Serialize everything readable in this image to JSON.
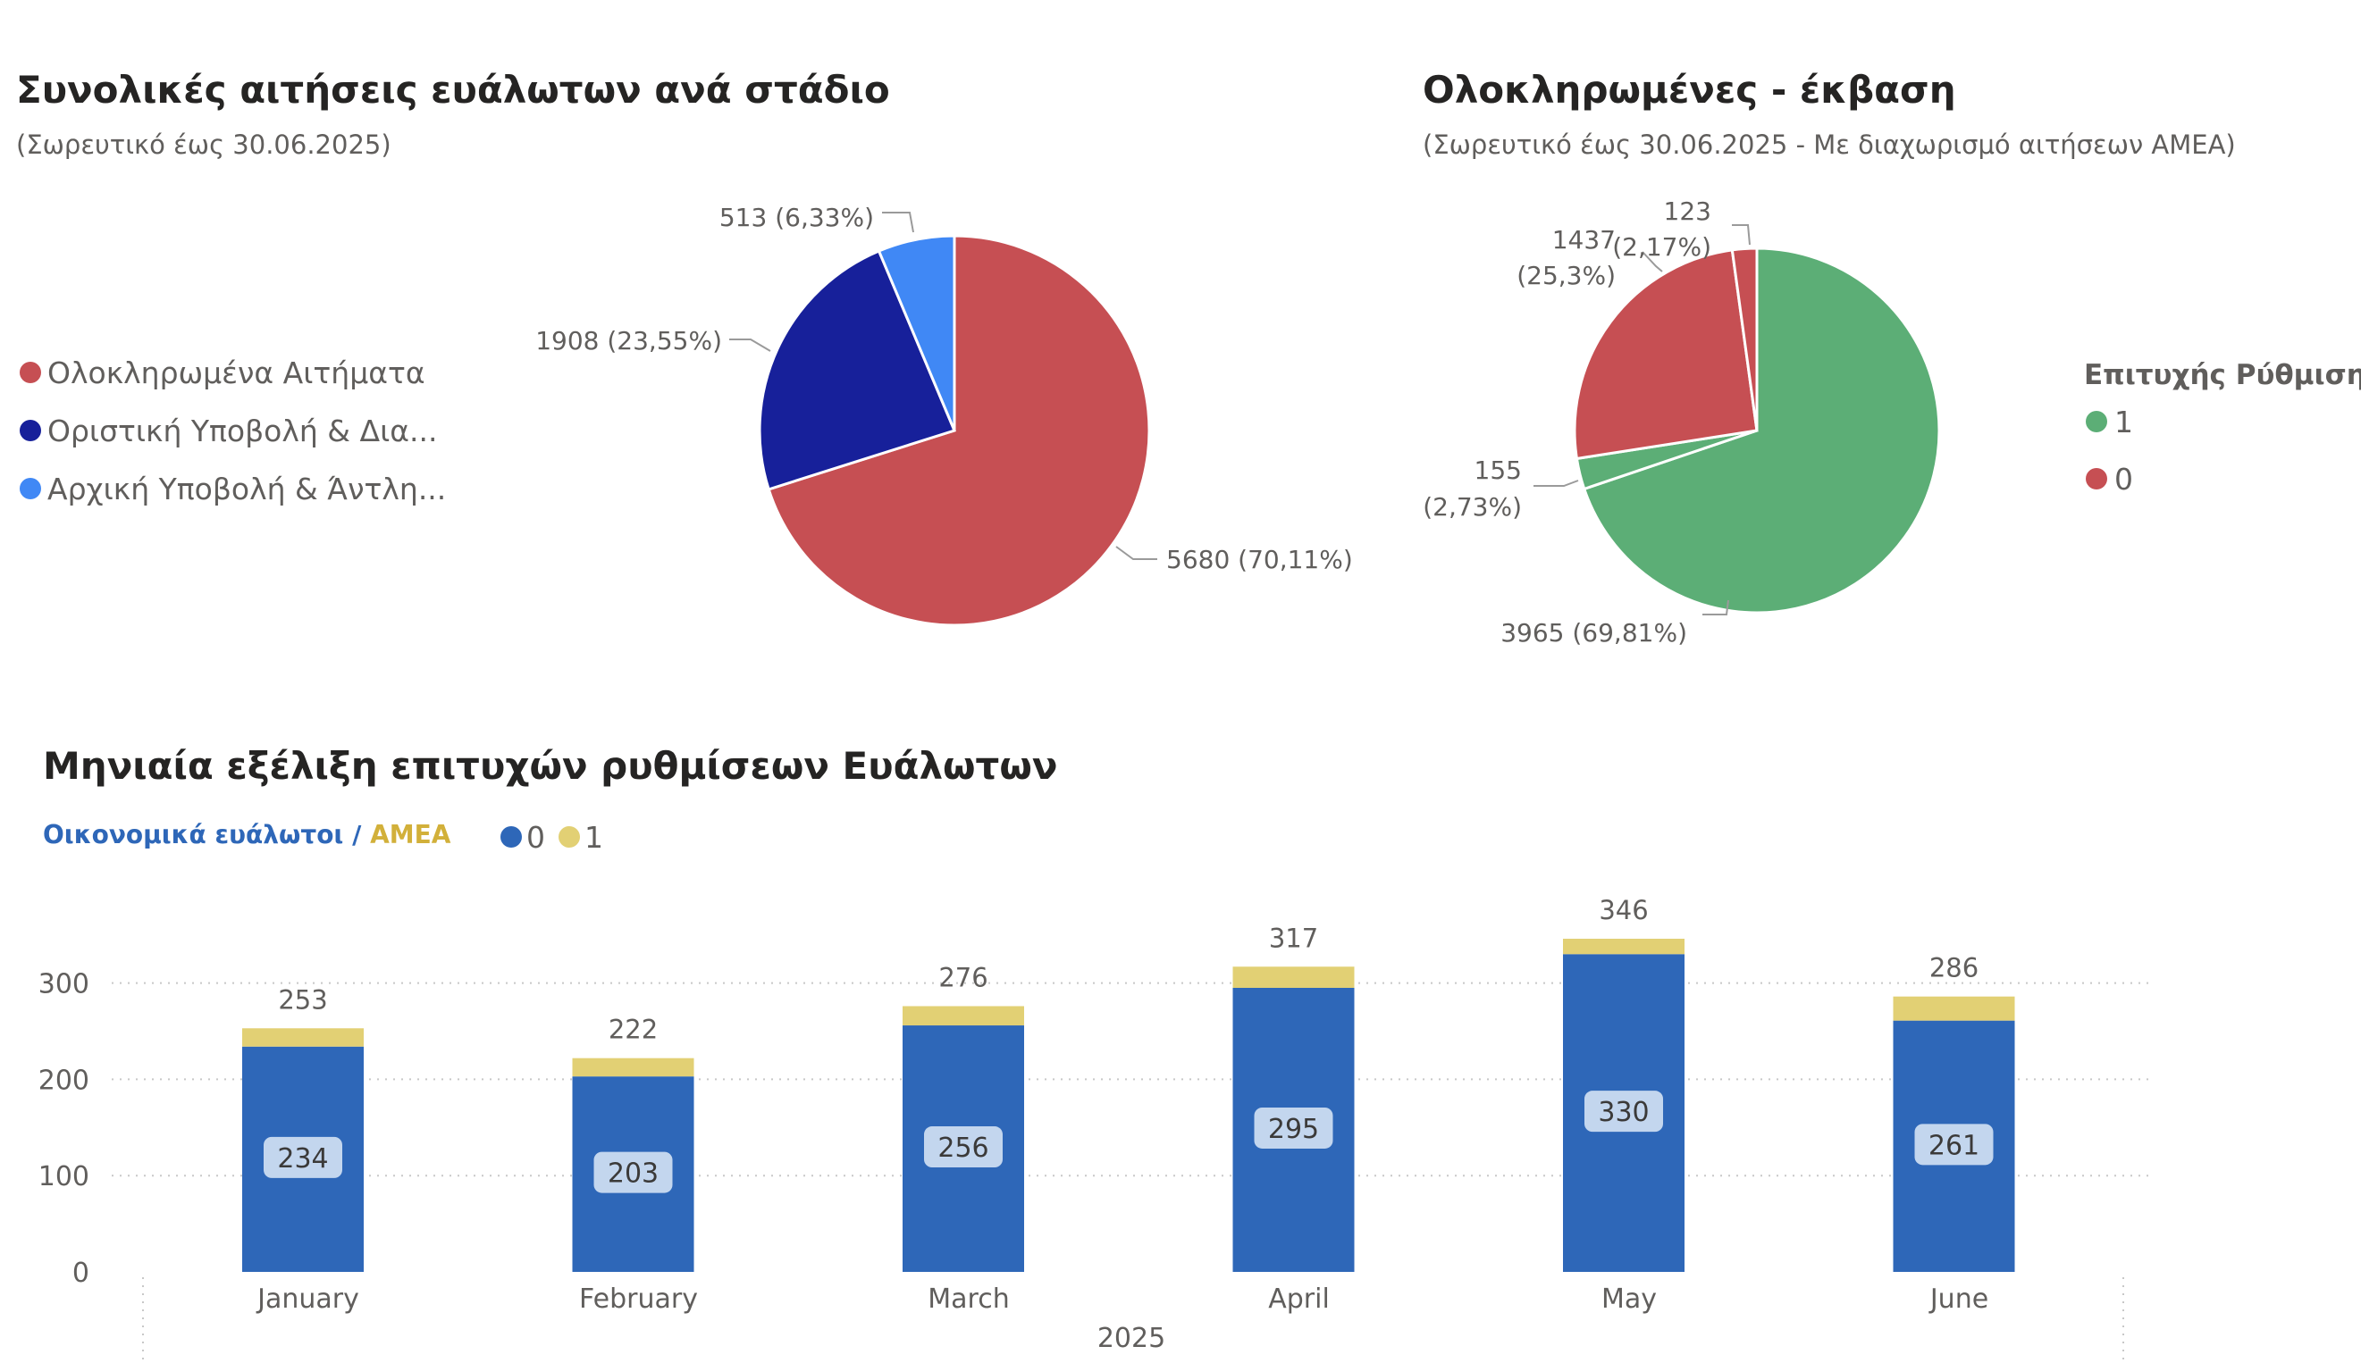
{
  "left_panel": {
    "title": "Συνολικές αιτήσεις ευάλωτων ανά στάδιο",
    "subtitle": "(Σωρευτικό έως 30.06.2025)",
    "legend": [
      {
        "label": "Ολοκληρωμένα Αιτήματα",
        "color": "#c64f53"
      },
      {
        "label": "Οριστική Υποβολή & Δια...",
        "color": "#17209a"
      },
      {
        "label": "Αρχική Υποβολή & Άντλη...",
        "color": "#4088f5"
      }
    ]
  },
  "right_panel": {
    "title": "Ολοκληρωμένες - έκβαση",
    "subtitle": "(Σωρευτικό έως 30.06.2025 - Με διαχωρισμό αιτήσεων ΑΜΕΑ)",
    "legend_title": "Επιτυχής Ρύθμιση",
    "legend": [
      {
        "label": "1",
        "color": "#5cae76"
      },
      {
        "label": "0",
        "color": "#c64f53"
      }
    ]
  },
  "bottom_panel": {
    "title": "Μηνιαία εξέλιξη επιτυχών ρυθμίσεων Ευάλωτων",
    "banner_part1": "Οικονομικά ευάλωτοι / ",
    "banner_part2": "ΑΜΕΑ",
    "legend": [
      {
        "label": "0",
        "color": "#2e67b8"
      },
      {
        "label": "1",
        "color": "#e2d074"
      }
    ]
  },
  "chart_data": [
    {
      "type": "pie",
      "title": "Συνολικές αιτήσεις ευάλωτων ανά στάδιο",
      "slices": [
        {
          "name": "Ολοκληρωμένα Αιτήματα",
          "value": 5680,
          "label": "5680 (70,11%)",
          "color": "#c64f53"
        },
        {
          "name": "Οριστική Υποβολή & Δια...",
          "value": 1908,
          "label": "1908 (23,55%)",
          "color": "#17209a"
        },
        {
          "name": "Αρχική Υποβολή & Άντλη...",
          "value": 513,
          "label": "513 (6,33%)",
          "color": "#4088f5"
        }
      ]
    },
    {
      "type": "pie",
      "title": "Ολοκληρωμένες - έκβαση",
      "slices": [
        {
          "name": "1",
          "value": 3965,
          "label": "3965 (69,81%)",
          "color": "#5cae76"
        },
        {
          "name": "1",
          "value": 155,
          "label_lines": [
            "155",
            "(2,73%)"
          ],
          "color": "#5cae76"
        },
        {
          "name": "0",
          "value": 1437,
          "label_lines": [
            "1437",
            "(25,3%)"
          ],
          "color": "#c64f53"
        },
        {
          "name": "0",
          "value": 123,
          "label_lines": [
            "123",
            "(2,17%)"
          ],
          "color": "#c64f53"
        }
      ]
    },
    {
      "type": "bar",
      "stacked": true,
      "title": "Μηνιαία εξέλιξη επιτυχών ρυθμίσεων Ευάλωτων",
      "categories": [
        "January",
        "February",
        "March",
        "April",
        "May",
        "June"
      ],
      "xlabel": "2025",
      "series": [
        {
          "name": "0",
          "values": [
            234,
            203,
            256,
            295,
            330,
            261
          ],
          "color": "#2e67b8"
        },
        {
          "name": "1",
          "values": [
            19,
            19,
            20,
            22,
            16,
            25
          ],
          "color": "#e2d074"
        }
      ],
      "totals": [
        253,
        222,
        276,
        317,
        346,
        286
      ],
      "ylim": [
        0,
        346
      ],
      "yticks": [
        0,
        100,
        200,
        300
      ],
      "grid": true
    }
  ]
}
